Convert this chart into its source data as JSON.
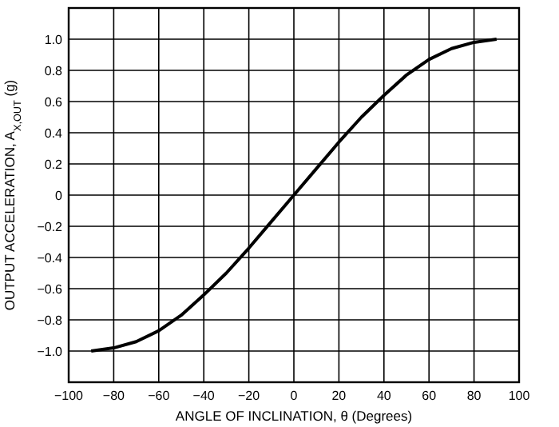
{
  "chart_data": {
    "type": "line",
    "xlabel": "ANGLE OF INCLINATION, θ (Degrees)",
    "ylabel": "OUTPUT ACCELERATION, A$_{X,OUT}$ (g)",
    "x": [
      -90,
      -80,
      -70,
      -60,
      -50,
      -40,
      -30,
      -20,
      -10,
      0,
      10,
      20,
      30,
      40,
      50,
      60,
      70,
      80,
      90
    ],
    "series": [
      {
        "color": "#000000",
        "values": [
          -1,
          -0.98,
          -0.94,
          -0.87,
          -0.77,
          -0.64,
          -0.5,
          -0.34,
          -0.17,
          0,
          0.17,
          0.34,
          0.5,
          0.64,
          0.77,
          0.87,
          0.94,
          0.98,
          1
        ]
      }
    ],
    "xlim": [
      -100,
      100
    ],
    "xticks": [
      {
        "value": -100,
        "label": "−100"
      },
      {
        "value": -80,
        "label": "−80"
      },
      {
        "value": -60,
        "label": "−60"
      },
      {
        "value": -40,
        "label": "−40"
      },
      {
        "value": -20,
        "label": "−20"
      },
      0,
      20,
      40,
      60,
      80,
      100
    ],
    "ylim": [
      -1.2,
      1.2
    ],
    "yticks": [
      {
        "value": -1,
        "label": "−1.0"
      },
      {
        "value": -0.8,
        "label": "−0.8"
      },
      {
        "value": -0.6,
        "label": "−0.6"
      },
      {
        "value": -0.4,
        "label": "−0.4"
      },
      {
        "value": -0.2,
        "label": "−0.2"
      },
      0,
      {
        "value": 0.2,
        "label": "0.2"
      },
      {
        "value": 0.4,
        "label": "0.4"
      },
      {
        "value": 0.6,
        "label": "0.6"
      },
      {
        "value": 0.8,
        "label": "0.8"
      },
      {
        "value": 1,
        "label": "1.0"
      }
    ],
    "grid": true,
    "line_style": "solid",
    "marker": "none"
  }
}
